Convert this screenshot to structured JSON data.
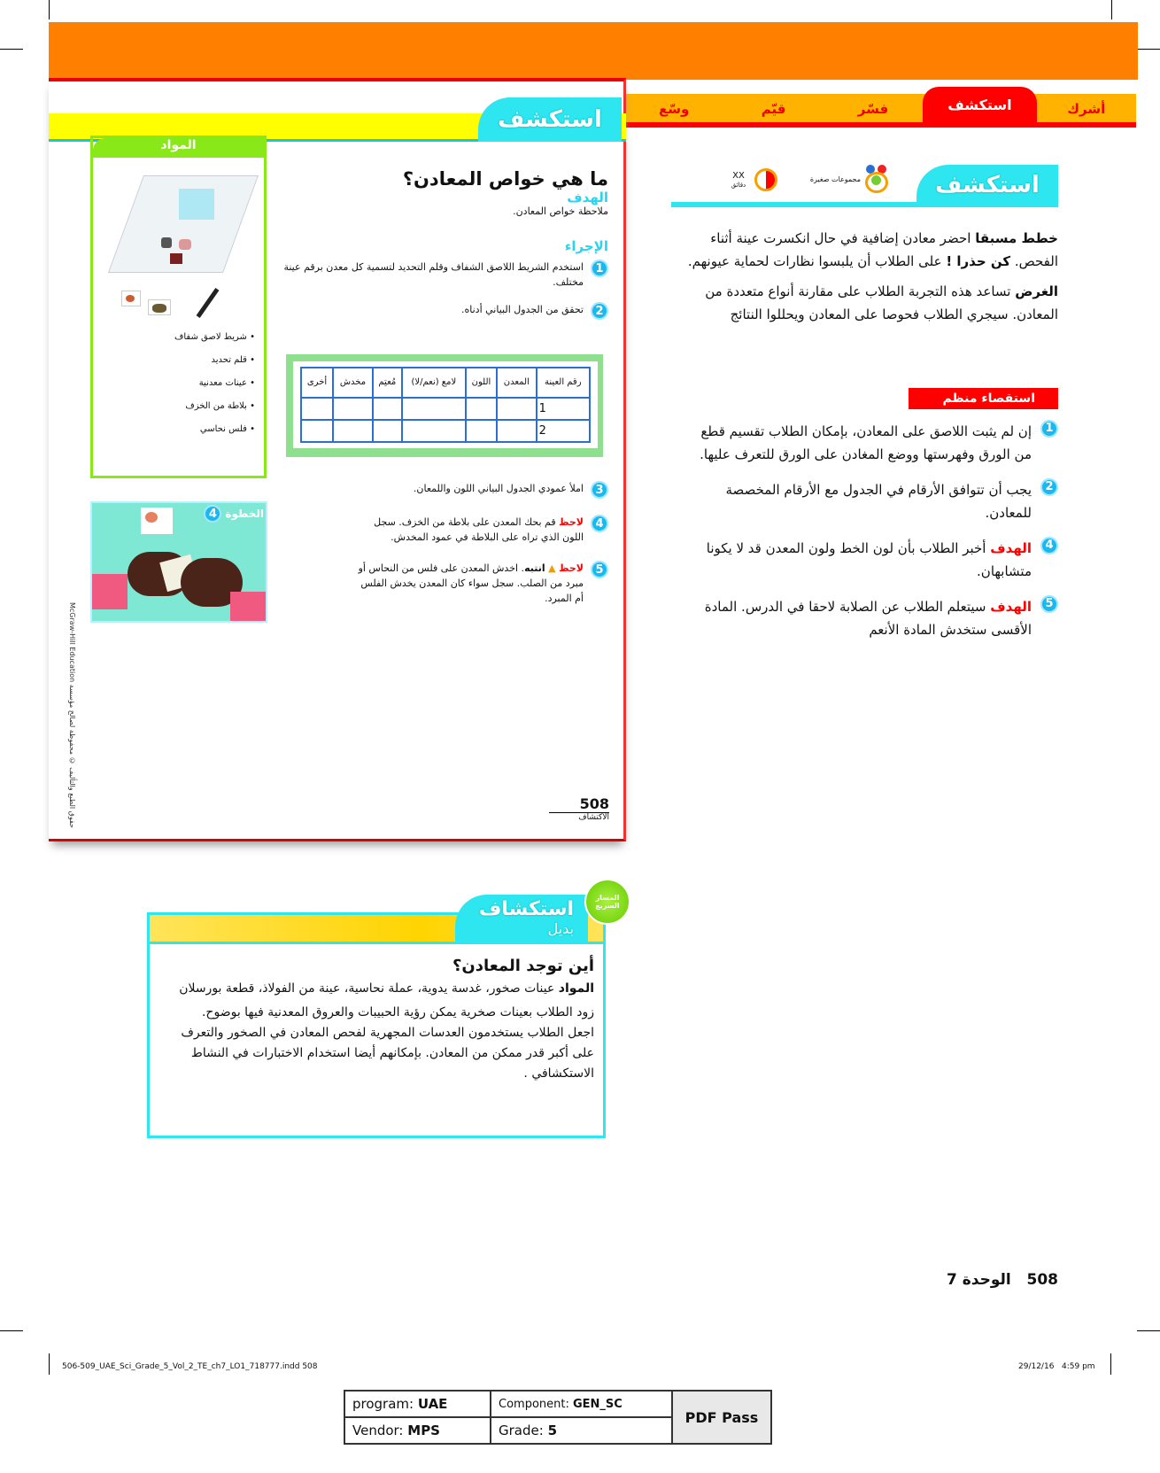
{
  "nav_tabs": [
    {
      "label": "أشرك",
      "active": false
    },
    {
      "label": "استكشف",
      "active": true
    },
    {
      "label": "فسّر",
      "active": false
    },
    {
      "label": "قيّم",
      "active": false
    },
    {
      "label": "وسّع",
      "active": false
    }
  ],
  "teacher": {
    "banner": "استكشف",
    "group_label": "مجموعات صغيرة",
    "time_value": "XX",
    "time_unit": "دقائق",
    "plan_label": "خطط مسبقا",
    "plan_text": " احضر معادن إضافية في حال انكسرت عينة أثناء الفحص. ",
    "caution_label": "كن حذرا !",
    "caution_text": " على الطلاب أن يلبسوا نظارات لحماية عيونهم.",
    "purpose_label": "الغرض",
    "purpose_text": " تساعد هذه التجربة الطلاب على مقارنة أنواع متعددة من المعادن. سيجري الطلاب فحوصا على المعادن ويحللوا النتائج",
    "inquiry_header": "استقصاء منظم",
    "notes": [
      {
        "n": "1",
        "label": "",
        "text": "إن لم يثبت اللاصق على المعادن، بإمكان الطلاب تقسيم قطع من الورق وفهرستها ووضع المغادن على الورق للتعرف عليها."
      },
      {
        "n": "2",
        "label": "",
        "text": "يجب أن تتوافق الأرقام في الجدول مع الأرقام المخصصة للمعادن."
      },
      {
        "n": "4",
        "label": "الهدف",
        "text": " أخبر الطلاب بأن لون الخط ولون المعدن قد لا يكونا متشابهان."
      },
      {
        "n": "5",
        "label": "الهدف",
        "text": " سيتعلم الطلاب عن الصلابة لاحقا في الدرس. المادة الأقسى ستخدش المادة  الأنعم"
      }
    ],
    "unit_footer": {
      "page": "508",
      "unit": "الوحدة 7"
    }
  },
  "student": {
    "banner": "استكشف",
    "materials_header": "المواد",
    "materials": [
      "شريط لاصق شفاف",
      "قلم تحديد",
      "عينات معدنية",
      "بلاطة من الخزف",
      "فلس نحاسي"
    ],
    "title": "ما هي خواص المعادن؟",
    "goal_label": "الهدف",
    "goal_text": "ملاحظة خواص المعادن.",
    "procedure_label": "الإجراء",
    "steps": [
      {
        "n": "1",
        "label": "",
        "text": "استخدم الشريط اللاصق الشفاف وقلم التحديد لتسمية كل معدن برقم عينة مختلف."
      },
      {
        "n": "2",
        "label": "",
        "text": "تحقق من الجدول البياني أدناه."
      },
      {
        "n": "3",
        "label": "",
        "text": "املأ عمودي الجدول البياني اللون واللمعان."
      },
      {
        "n": "4",
        "label": "لاحظ",
        "text": " قم بحك المعدن على بلاطة من الخزف. سجل اللون الذي تراه على البلاطة في عمود المخدش."
      },
      {
        "n": "5",
        "label": "لاحظ",
        "caution": "انتبه",
        "text": ". اخدش المعدن على فلس من النحاس أو مبرد من الصلب. سجل سواء كان المعدن يخدش الفلس أم المبرد."
      }
    ],
    "table": {
      "headers": [
        "رقم العينة",
        "المعدن",
        "اللون",
        "لامع (نعم/لا)",
        "مُعتِم",
        "مخدش",
        "أخرى"
      ],
      "rows": [
        [
          "1",
          "",
          "",
          "",
          "",
          "",
          ""
        ],
        [
          "2",
          "",
          "",
          "",
          "",
          "",
          ""
        ]
      ]
    },
    "photo_label": "الخطوة",
    "photo_step": "4",
    "copyright": "McGraw-Hill Education حقوق الطبع والتأليف © محفوظة لصالح مؤسسة",
    "page_number": "508",
    "page_label": "الاكتشاف"
  },
  "alt": {
    "banner": "استكشاف",
    "banner_sub": "بديل",
    "badge": "المسار السريع",
    "title": "أين توجد المعادن؟",
    "materials_label": "المواد",
    "materials_text": " عينات صخور، غدسة يدوية، عملة نحاسية، عينة من الفولاذ، قطعة بورسلان",
    "body": "زود الطلاب بعينات صخرية يمكن رؤية الحبيبات والعروق المعدنية فيها بوضوح. اجعل الطلاب يستخدمون العدسات المجهرية لفحص المعادن في الصخور والتعرف على أكبر قدر ممكن من المعادن. بإمكانهم أيضا استخدام الاختبارات في النشاط الاستكشافي ."
  },
  "slug": {
    "file": "506-509_UAE_Sci_Grade_5_Vol_2_TE_ch7_LO1_718777.indd   508",
    "date": "29/12/16   4:59 pm"
  },
  "stamp": {
    "program_label": "program: ",
    "program": "UAE",
    "component_label": "Component: ",
    "component": "GEN_SC",
    "vendor_label": "Vendor: ",
    "vendor": "MPS",
    "grade_label": "Grade: ",
    "grade": "5",
    "status": "PDF Pass"
  },
  "colors": {
    "orange": "#ff8000",
    "red": "#ff0000",
    "cyan": "#2ee6f0",
    "yellow": "#ffff00",
    "green": "#88e818"
  }
}
